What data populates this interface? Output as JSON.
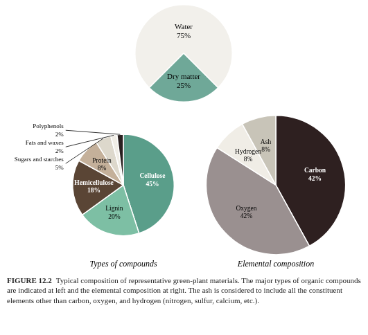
{
  "chart_data": [
    {
      "type": "pie",
      "categories": [
        "Water",
        "Dry matter"
      ],
      "values": [
        75,
        25
      ],
      "value_labels": [
        "75%",
        "25%"
      ],
      "colors": [
        "#f2f0eb",
        "#6fa898"
      ],
      "data_labels": true
    },
    {
      "type": "pie",
      "title": "Types of compounds",
      "categories": [
        "Cellulose",
        "Lignin",
        "Hemicellulose",
        "Protein",
        "Sugars and starches",
        "Fats and waxes",
        "Polyphenols"
      ],
      "values": [
        45,
        20,
        18,
        8,
        5,
        2,
        2
      ],
      "value_labels": [
        "45%",
        "20%",
        "18%",
        "8%",
        "5%",
        "2%",
        "2%"
      ],
      "colors": [
        "#5a9e8a",
        "#7dbfa4",
        "#5a4535",
        "#c4b09a",
        "#ddd8cc",
        "#f0ede6",
        "#2a2020"
      ],
      "data_labels": true
    },
    {
      "type": "pie",
      "title": "Elemental composition",
      "categories": [
        "Carbon",
        "Oxygen",
        "Hydrogen",
        "Ash"
      ],
      "values": [
        42,
        42,
        8,
        8
      ],
      "value_labels": [
        "42%",
        "42%",
        "8%",
        "8%"
      ],
      "colors": [
        "#2e2020",
        "#9a9090",
        "#f0ede6",
        "#c8c4b8"
      ],
      "data_labels": true
    }
  ],
  "annotations": [
    "FIGURE 12.2",
    "Typical composition of representative green-plant materials. The major types of organic compounds are indicated at left and the elemental composition at right. The ash is considered to include all the constituent elements other than carbon, oxygen, and hydrogen (nitrogen, sulfur, calcium, etc.)."
  ]
}
